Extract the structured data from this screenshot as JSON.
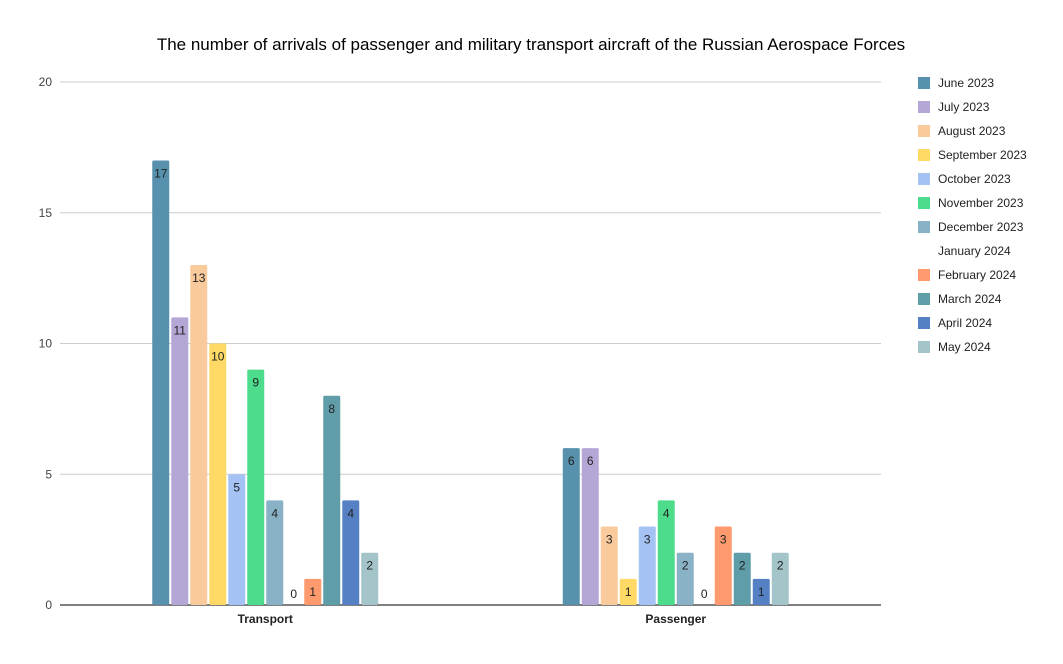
{
  "chart_data": {
    "type": "bar",
    "title": "The number of arrivals of passenger and military transport aircraft of the Russian Aerospace Forces",
    "xlabel": "",
    "ylabel": "",
    "ylim": [
      0,
      20
    ],
    "yticks": [
      "0",
      "5",
      "10",
      "15",
      "20"
    ],
    "grid": true,
    "legend_position": "right",
    "categories": [
      "Transport",
      "Passenger"
    ],
    "series": [
      {
        "name": "June 2023",
        "color": "#5891ad",
        "values": [
          17,
          6
        ]
      },
      {
        "name": "July 2023",
        "color": "#b4a7d6",
        "values": [
          11,
          6
        ]
      },
      {
        "name": "August 2023",
        "color": "#f9cb9c",
        "values": [
          13,
          3
        ]
      },
      {
        "name": "September 2023",
        "color": "#ffd966",
        "values": [
          10,
          1
        ]
      },
      {
        "name": "October 2023",
        "color": "#a4c2f4",
        "values": [
          5,
          3
        ]
      },
      {
        "name": "November 2023",
        "color": "#4cdc8b",
        "values": [
          9,
          4
        ]
      },
      {
        "name": "December 2023",
        "color": "#8ab2c6",
        "values": [
          4,
          2
        ]
      },
      {
        "name": "January 2024",
        "color": "#ffffff",
        "values": [
          0,
          0
        ]
      },
      {
        "name": "February 2024",
        "color": "#ff9a6e",
        "values": [
          1,
          3
        ]
      },
      {
        "name": "March 2024",
        "color": "#5f9ea9",
        "values": [
          8,
          2
        ]
      },
      {
        "name": "April 2024",
        "color": "#5680c4",
        "values": [
          4,
          1
        ]
      },
      {
        "name": "May 2024",
        "color": "#a3c4c9",
        "values": [
          2,
          2
        ]
      }
    ]
  }
}
